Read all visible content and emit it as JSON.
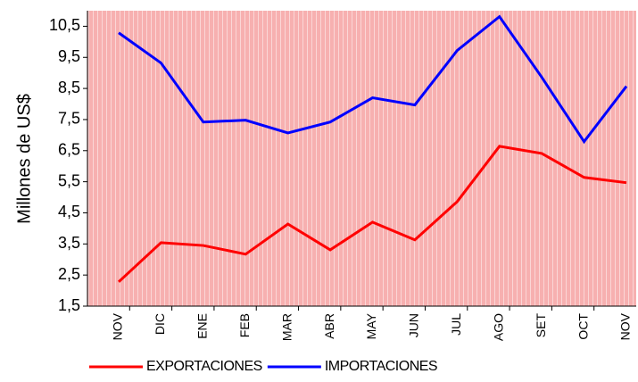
{
  "chart_data": {
    "type": "line",
    "y_label": "Millones de US$",
    "categories": [
      "NOV",
      "DIC",
      "ENE",
      "FEB",
      "MAR",
      "ABR",
      "MAY",
      "JUN",
      "JUL",
      "AGO",
      "SET",
      "OCT",
      "NOV"
    ],
    "series": [
      {
        "name": "EXPORTACIONES",
        "color": "#ff0000",
        "values": [
          2.28,
          3.54,
          3.45,
          3.17,
          4.14,
          3.31,
          4.2,
          3.63,
          4.86,
          6.64,
          6.41,
          5.64,
          5.47
        ]
      },
      {
        "name": "IMPORTACIONES",
        "color": "#0000ff",
        "values": [
          10.29,
          9.32,
          7.42,
          7.48,
          7.07,
          7.42,
          8.2,
          7.97,
          9.72,
          10.81,
          8.86,
          6.79,
          8.57
        ]
      }
    ],
    "ylim": [
      1.5,
      11
    ],
    "yticks": [
      {
        "value": 1.5,
        "label": "1,5"
      },
      {
        "value": 2.5,
        "label": "2,5"
      },
      {
        "value": 3.5,
        "label": "3,5"
      },
      {
        "value": 4.5,
        "label": "4,5"
      },
      {
        "value": 5.5,
        "label": "5,5"
      },
      {
        "value": 6.5,
        "label": "6,5"
      },
      {
        "value": 7.5,
        "label": "7,5"
      },
      {
        "value": 8.5,
        "label": "8,5"
      },
      {
        "value": 9.5,
        "label": "9,5"
      },
      {
        "value": 10.5,
        "label": "10,5"
      }
    ],
    "legend": "bottom"
  }
}
